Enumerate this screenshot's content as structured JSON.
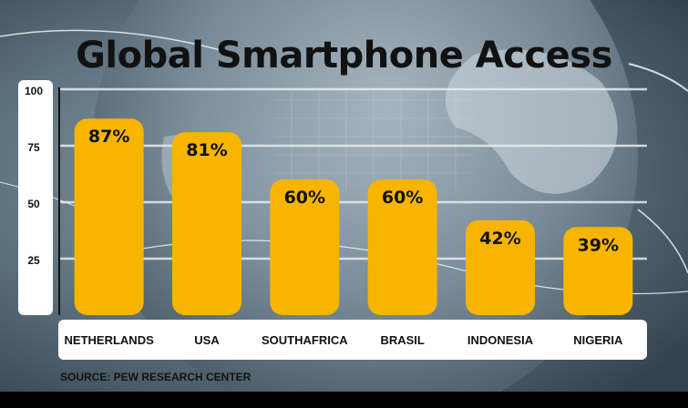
{
  "chart_data": {
    "type": "bar",
    "title": "Global Smartphone Access",
    "categories": [
      "NETHERLANDS",
      "USA",
      "SOUTH AFRICA",
      "BRASIL",
      "INDONESIA",
      "NIGERIA"
    ],
    "values": [
      87,
      81,
      60,
      60,
      42,
      39
    ],
    "data_labels": [
      "87%",
      "81%",
      "60%",
      "60%",
      "42%",
      "39%"
    ],
    "y_ticks": [
      "100",
      "75",
      "50",
      "25"
    ],
    "ylim": [
      0,
      100
    ],
    "xlabel": "",
    "ylabel": "",
    "grid": true,
    "bar_color": "#F7B500",
    "source": "SOURCE: PEW RESEARCH CENTER"
  },
  "colors": {
    "background_globe": "#5c6f7e",
    "grid_line": "#e8edf0",
    "panel": "#ffffff",
    "text": "#111111"
  }
}
